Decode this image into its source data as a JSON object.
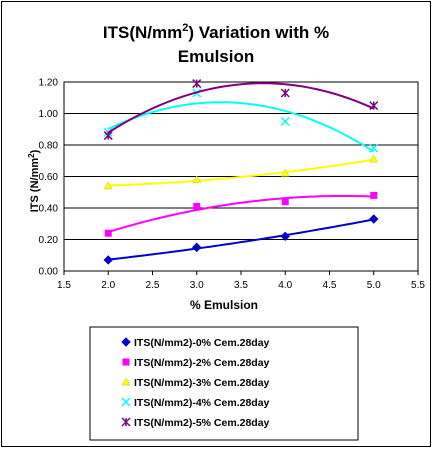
{
  "chart_data": {
    "type": "scatter",
    "title_line1": "ITS(N/mm",
    "title_sup": "2",
    "title_line1_end": ") Variation with %",
    "title_line2": "Emulsion",
    "xlabel": "% Emulsion",
    "ylabel": "ITS (N/mm",
    "ylabel_sup": "2",
    "ylabel_end": ")",
    "xlim": [
      1.5,
      5.5
    ],
    "ylim": [
      0.0,
      1.2
    ],
    "xticks": [
      "1.5",
      "2.0",
      "2.5",
      "3.0",
      "3.5",
      "4.0",
      "4.5",
      "5.0",
      "5.5"
    ],
    "yticks": [
      "0.00",
      "0.20",
      "0.40",
      "0.60",
      "0.80",
      "1.00",
      "1.20"
    ],
    "grid": "horizontal",
    "legend_position": "bottom",
    "series": [
      {
        "name": "ITS(N/mm2)-0% Cem.28day",
        "color": "#0000cc",
        "marker": "diamond",
        "x": [
          2.0,
          3.0,
          4.0,
          5.0
        ],
        "y": [
          0.07,
          0.15,
          0.22,
          0.33
        ]
      },
      {
        "name": "ITS(N/mm2)-2% Cem.28day",
        "color": "#ff00ff",
        "marker": "square",
        "x": [
          2.0,
          3.0,
          4.0,
          5.0
        ],
        "y": [
          0.24,
          0.41,
          0.44,
          0.48
        ]
      },
      {
        "name": "ITS(N/mm2)-3% Cem.28day",
        "color": "#ffff00",
        "marker": "triangle",
        "x": [
          2.0,
          3.0,
          4.0,
          5.0
        ],
        "y": [
          0.54,
          0.58,
          0.62,
          0.71
        ]
      },
      {
        "name": "ITS(N/mm2)-4% Cem.28day",
        "color": "#00ffff",
        "marker": "x",
        "x": [
          2.0,
          3.0,
          4.0,
          5.0
        ],
        "y": [
          0.88,
          1.13,
          0.95,
          0.78
        ]
      },
      {
        "name": "ITS(N/mm2)-5% Cem.28day",
        "color": "#800080",
        "marker": "star",
        "x": [
          2.0,
          3.0,
          4.0,
          5.0
        ],
        "y": [
          0.86,
          1.19,
          1.13,
          1.05
        ]
      }
    ]
  }
}
